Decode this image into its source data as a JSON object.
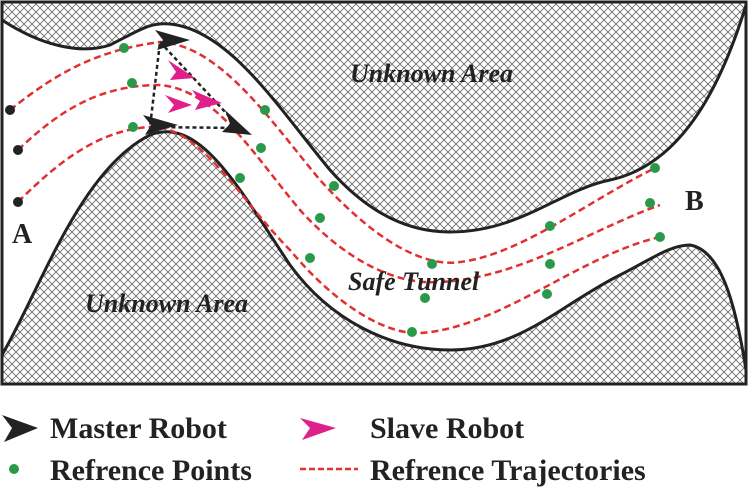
{
  "areas": {
    "top": "Unknown Area",
    "bottom": "Unknown Area",
    "tunnel": "Safe Tunnel"
  },
  "endpoints": {
    "start": "A",
    "end": "B"
  },
  "legend": {
    "master": "Master Robot",
    "slave": "Slave Robot",
    "points": "Refrence Points",
    "trajectories": "Refrence Trajectories"
  }
}
